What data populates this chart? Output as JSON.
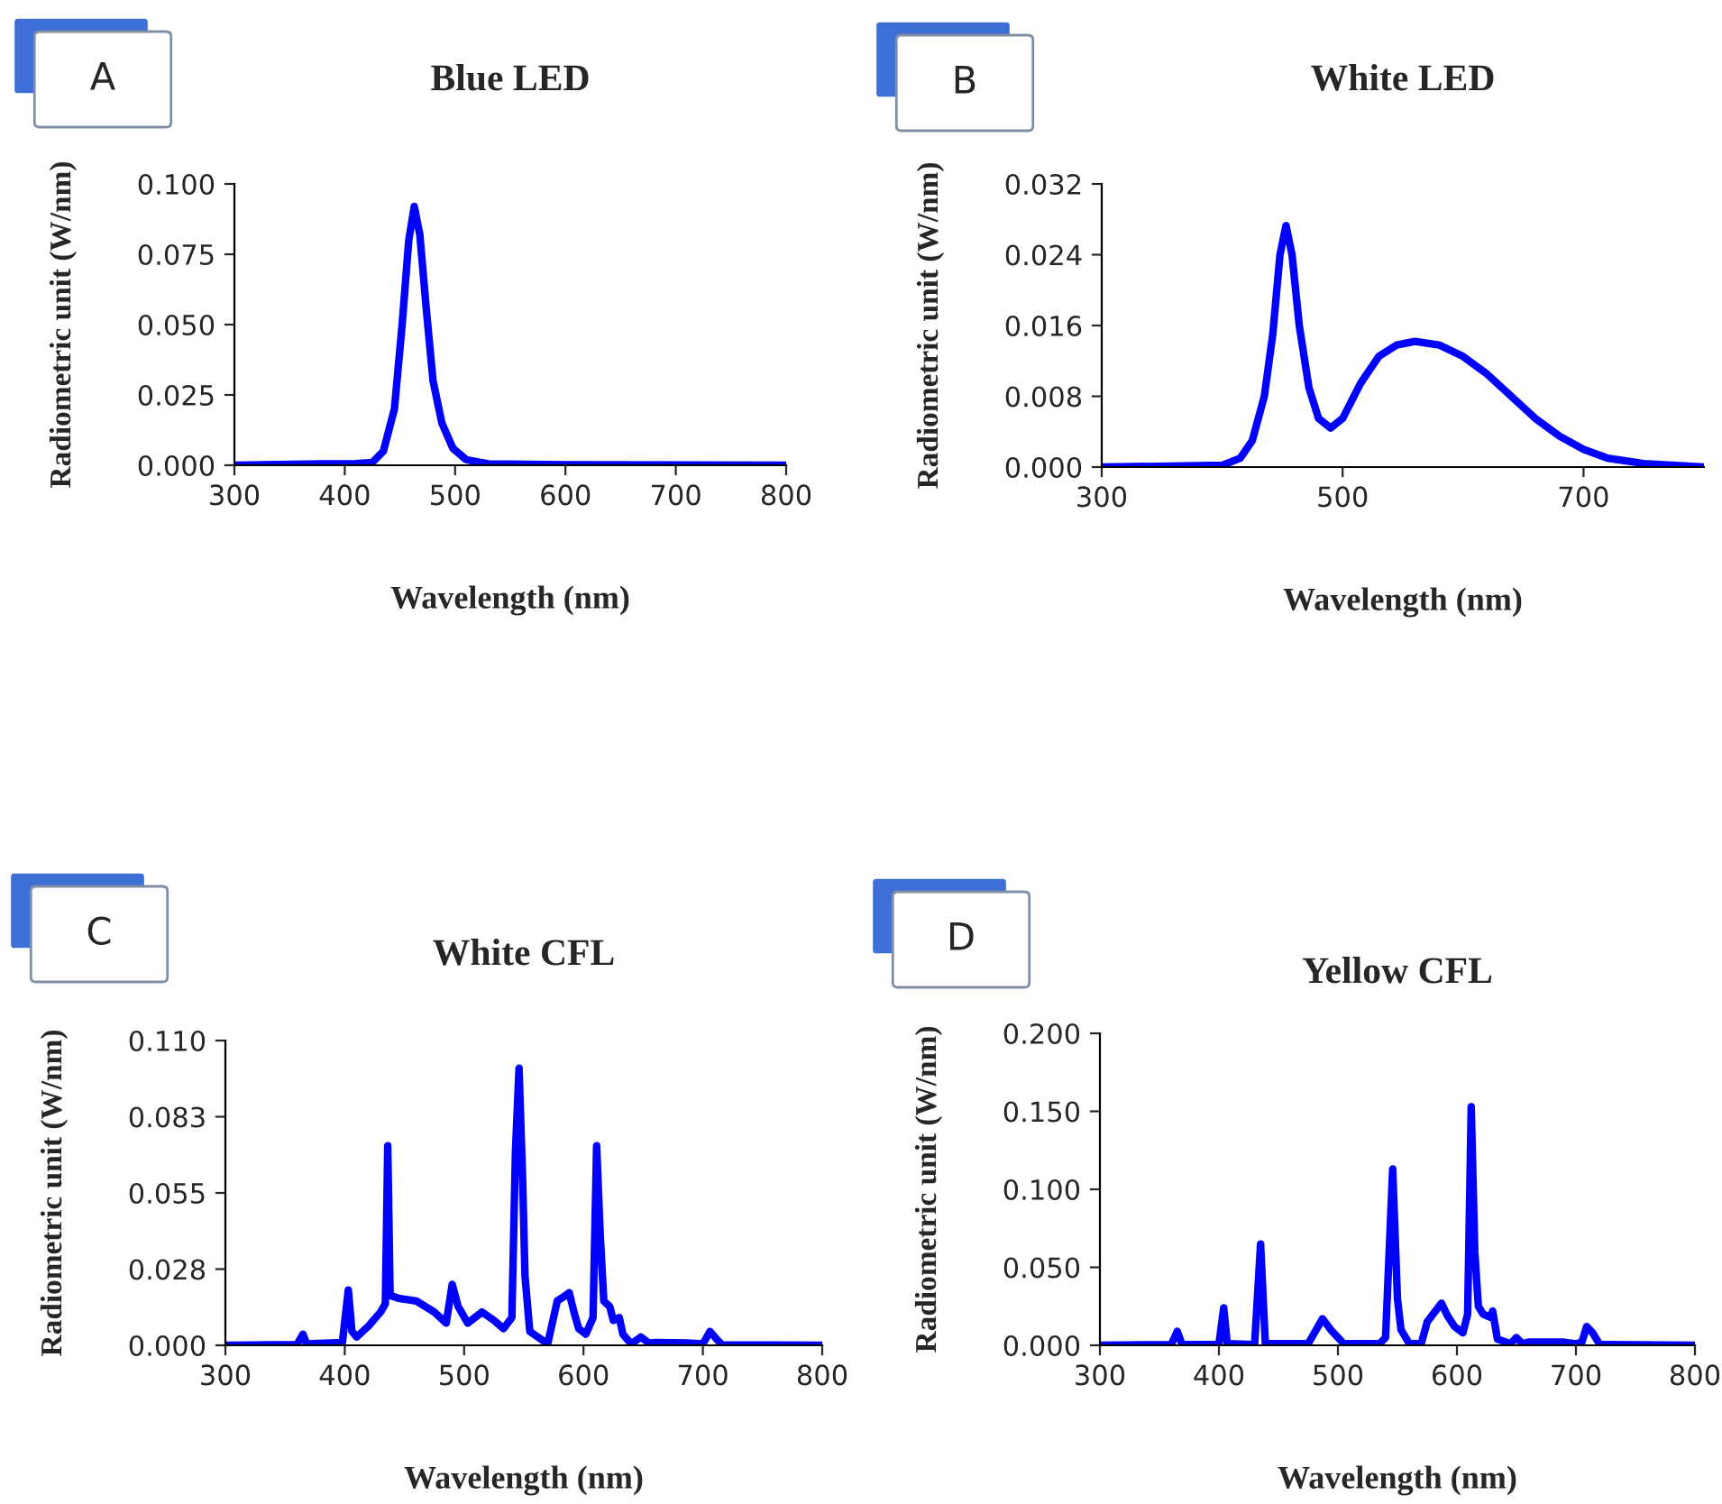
{
  "chart_data": [
    {
      "type": "line",
      "title": "Blue LED",
      "xlabel": "Wavelength (nm)",
      "ylabel": "Radiometric unit (W/nm)",
      "annotations": [
        "A"
      ],
      "xlim": [
        300,
        800
      ],
      "xticks": [
        300,
        400,
        500,
        600,
        700,
        800
      ],
      "ylim": [
        0,
        0.1
      ],
      "yticks": [
        {
          "value": 0,
          "label": "0.000"
        },
        {
          "value": 0.025,
          "label": "0.025"
        },
        {
          "value": 0.05,
          "label": "0.050"
        },
        {
          "value": 0.075,
          "label": "0.075"
        },
        {
          "value": 0.1,
          "label": "0.100"
        }
      ],
      "grid": false,
      "legend": false,
      "marker": "none",
      "line_style": "solid",
      "series": [
        {
          "color": "#0000ff",
          "x": [
            300,
            380,
            410,
            425,
            435,
            445,
            452,
            458,
            463,
            468,
            474,
            480,
            488,
            498,
            510,
            530,
            600,
            800
          ],
          "values": [
            0,
            0.0005,
            0.0006,
            0.001,
            0.005,
            0.02,
            0.05,
            0.08,
            0.092,
            0.082,
            0.055,
            0.03,
            0.015,
            0.006,
            0.002,
            0.0005,
            0.0002,
            0
          ]
        }
      ]
    },
    {
      "type": "line",
      "title": "White LED",
      "xlabel": "Wavelength (nm)",
      "ylabel": "Radiometric unit (W/nm)",
      "annotations": [
        "B"
      ],
      "xlim": [
        300,
        800
      ],
      "xticks": [
        300,
        500,
        700
      ],
      "ylim": [
        0,
        0.032
      ],
      "yticks": [
        {
          "value": 0,
          "label": "0.000"
        },
        {
          "value": 0.008,
          "label": "0.008"
        },
        {
          "value": 0.016,
          "label": "0.016"
        },
        {
          "value": 0.024,
          "label": "0.024"
        },
        {
          "value": 0.032,
          "label": "0.032"
        }
      ],
      "grid": false,
      "legend": false,
      "marker": "none",
      "line_style": "solid",
      "series": [
        {
          "color": "#0000ff",
          "x": [
            300,
            400,
            415,
            425,
            435,
            442,
            448,
            453,
            458,
            464,
            472,
            480,
            490,
            500,
            515,
            530,
            545,
            560,
            580,
            600,
            620,
            640,
            660,
            680,
            700,
            720,
            750,
            800
          ],
          "values": [
            0,
            0.0002,
            0.001,
            0.003,
            0.008,
            0.015,
            0.024,
            0.0273,
            0.024,
            0.016,
            0.009,
            0.0055,
            0.0044,
            0.0055,
            0.0095,
            0.0125,
            0.0138,
            0.0142,
            0.0138,
            0.0125,
            0.0105,
            0.008,
            0.0055,
            0.0035,
            0.002,
            0.001,
            0.0004,
            0
          ]
        }
      ]
    },
    {
      "type": "line",
      "title": "White CFL",
      "xlabel": "Wavelength (nm)",
      "ylabel": "Radiometric unit (W/nm)",
      "annotations": [
        "C"
      ],
      "xlim": [
        300,
        800
      ],
      "xticks": [
        300,
        400,
        500,
        600,
        700,
        800
      ],
      "ylim": [
        0,
        0.11
      ],
      "yticks": [
        {
          "value": 0,
          "label": "0.000"
        },
        {
          "value": 0.0275,
          "label": "0.028"
        },
        {
          "value": 0.055,
          "label": "0.055"
        },
        {
          "value": 0.0825,
          "label": "0.083"
        },
        {
          "value": 0.11,
          "label": "0.110"
        }
      ],
      "grid": false,
      "legend": false,
      "marker": "none",
      "line_style": "solid",
      "series": [
        {
          "color": "#0000ff",
          "x": [
            300,
            360,
            365,
            368,
            398,
            403,
            406,
            410,
            420,
            430,
            434,
            436,
            438,
            445,
            460,
            475,
            485,
            490,
            495,
            503,
            515,
            525,
            533,
            540,
            543,
            546,
            549,
            551,
            555,
            570,
            578,
            585,
            588,
            592,
            596,
            602,
            608,
            611,
            614,
            617,
            622,
            625,
            630,
            633,
            640,
            648,
            655,
            660,
            690,
            700,
            706,
            712,
            716,
            800
          ],
          "values": [
            0,
            0.0003,
            0.004,
            0.0005,
            0.001,
            0.02,
            0.005,
            0.003,
            0.007,
            0.012,
            0.015,
            0.072,
            0.018,
            0.017,
            0.016,
            0.012,
            0.008,
            0.022,
            0.014,
            0.008,
            0.012,
            0.009,
            0.006,
            0.01,
            0.07,
            0.1,
            0.06,
            0.025,
            0.005,
            0.0005,
            0.016,
            0.018,
            0.019,
            0.012,
            0.006,
            0.004,
            0.01,
            0.072,
            0.04,
            0.016,
            0.014,
            0.009,
            0.01,
            0.004,
            0.0005,
            0.003,
            0.0008,
            0.001,
            0.0008,
            0.0005,
            0.005,
            0.002,
            0.0002,
            0
          ]
        }
      ]
    },
    {
      "type": "line",
      "title": "Yellow CFL",
      "xlabel": "Wavelength (nm)",
      "ylabel": "Radiometric unit (W/nm)",
      "annotations": [
        "D"
      ],
      "xlim": [
        300,
        800
      ],
      "xticks": [
        300,
        400,
        500,
        600,
        700,
        800
      ],
      "ylim": [
        0,
        0.2
      ],
      "yticks": [
        {
          "value": 0,
          "label": "0.000"
        },
        {
          "value": 0.05,
          "label": "0.050"
        },
        {
          "value": 0.1,
          "label": "0.100"
        },
        {
          "value": 0.15,
          "label": "0.150"
        },
        {
          "value": 0.2,
          "label": "0.200"
        }
      ],
      "grid": false,
      "legend": false,
      "marker": "none",
      "line_style": "solid",
      "series": [
        {
          "color": "#0000ff",
          "x": [
            300,
            360,
            365,
            369,
            400,
            404,
            407,
            430,
            435,
            439,
            475,
            487,
            495,
            505,
            535,
            540,
            546,
            550,
            553,
            560,
            570,
            575,
            580,
            587,
            592,
            598,
            605,
            609,
            612,
            615,
            618,
            622,
            628,
            630,
            634,
            645,
            650,
            655,
            660,
            690,
            700,
            705,
            709,
            714,
            720,
            800
          ],
          "values": [
            0,
            0.0005,
            0.009,
            0.0005,
            0.0005,
            0.024,
            0.001,
            0.0005,
            0.065,
            0.001,
            0.001,
            0.017,
            0.009,
            0.001,
            0.001,
            0.005,
            0.113,
            0.03,
            0.01,
            0.001,
            0.001,
            0.015,
            0.02,
            0.027,
            0.019,
            0.012,
            0.008,
            0.02,
            0.153,
            0.06,
            0.025,
            0.02,
            0.018,
            0.022,
            0.004,
            0.001,
            0.005,
            0.001,
            0.002,
            0.002,
            0.001,
            0.002,
            0.012,
            0.008,
            0.0005,
            0
          ]
        }
      ]
    }
  ]
}
